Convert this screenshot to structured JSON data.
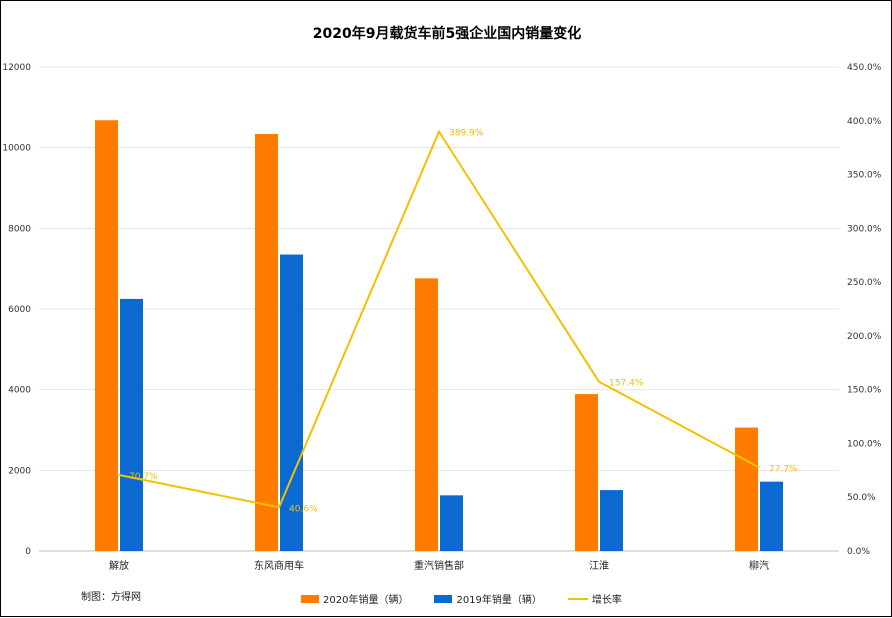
{
  "chart_data": {
    "type": "bar",
    "title": "2020年9月载货车前5强企业国内销量变化",
    "categories": [
      "解放",
      "东风商用车",
      "重汽销售部",
      "江淮",
      "柳汽"
    ],
    "series": [
      {
        "name": "2020年销量（辆）",
        "kind": "bar",
        "axis": "left",
        "color": "#ff7c00",
        "values": [
          10680,
          10340,
          6760,
          3890,
          3060
        ]
      },
      {
        "name": "2019年销量（辆）",
        "kind": "bar",
        "axis": "left",
        "color": "#0b6ad1",
        "values": [
          6250,
          7350,
          1380,
          1510,
          1720
        ]
      }
    ],
    "line_series": {
      "name": "增长率",
      "kind": "line",
      "axis": "right",
      "color": "#f5c000",
      "values": [
        70.7,
        40.6,
        389.9,
        157.4,
        77.7
      ],
      "labels": [
        "70.7%",
        "40.6%",
        "389.9%",
        "157.4%",
        "77.7%"
      ]
    },
    "y_left": {
      "min": 0,
      "max": 12000,
      "ticks": [
        "0",
        "2000",
        "4000",
        "6000",
        "8000",
        "10000",
        "12000"
      ]
    },
    "y_right": {
      "min": 0,
      "max": 450,
      "ticks": [
        "0.0%",
        "50.0%",
        "100.0%",
        "150.0%",
        "200.0%",
        "250.0%",
        "300.0%",
        "350.0%",
        "400.0%",
        "450.0%"
      ]
    },
    "grid": true,
    "legend_position": "bottom"
  },
  "credit": "制图：方得网"
}
